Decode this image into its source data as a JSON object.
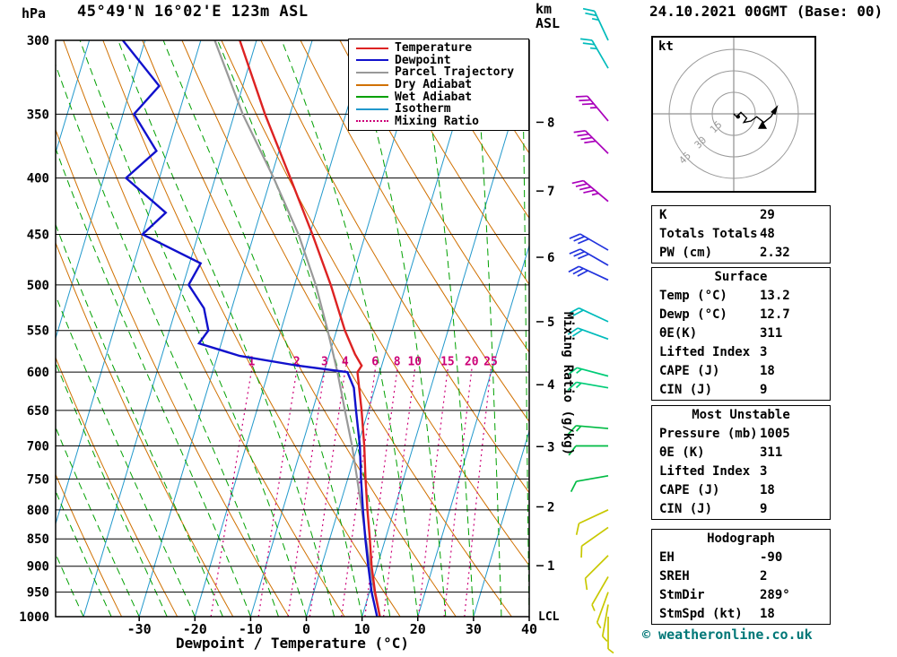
{
  "header": {
    "pressure_unit": "hPa",
    "station_title": "45°49'N 16°02'E 123m ASL",
    "altitude_unit_line1": "km",
    "altitude_unit_line2": "ASL",
    "datetime_title": "24.10.2021 00GMT (Base: 00)"
  },
  "axis": {
    "x_title": "Dewpoint / Temperature (°C)",
    "mixing_ratio_title": "Mixing Ratio (g/kg)",
    "lcl_label": "LCL"
  },
  "footer": {
    "credit": "© weatheronline.co.uk"
  },
  "legend": [
    {
      "label": "Temperature",
      "color": "#dd2222",
      "style": "solid"
    },
    {
      "label": "Dewpoint",
      "color": "#1111cc",
      "style": "solid"
    },
    {
      "label": "Parcel Trajectory",
      "color": "#999999",
      "style": "solid"
    },
    {
      "label": "Dry Adiabat",
      "color": "#d07000",
      "style": "solid"
    },
    {
      "label": "Wet Adiabat",
      "color": "#00a000",
      "style": "solid"
    },
    {
      "label": "Isotherm",
      "color": "#2299cc",
      "style": "solid"
    },
    {
      "label": "Mixing Ratio",
      "color": "#cc0077",
      "style": "dotted"
    }
  ],
  "panels": {
    "indices": {
      "rows": [
        {
          "label": "K",
          "value": "29"
        },
        {
          "label": "Totals Totals",
          "value": "48"
        },
        {
          "label": "PW (cm)",
          "value": "2.32"
        }
      ]
    },
    "surface": {
      "title": "Surface",
      "rows": [
        {
          "label": "Temp (°C)",
          "value": "13.2"
        },
        {
          "label": "Dewp (°C)",
          "value": "12.7"
        },
        {
          "label": "θE(K)",
          "value": "311"
        },
        {
          "label": "Lifted Index",
          "value": "3"
        },
        {
          "label": "CAPE (J)",
          "value": "18"
        },
        {
          "label": "CIN (J)",
          "value": "9"
        }
      ]
    },
    "most_unstable": {
      "title": "Most Unstable",
      "rows": [
        {
          "label": "Pressure (mb)",
          "value": "1005"
        },
        {
          "label": "θE (K)",
          "value": "311"
        },
        {
          "label": "Lifted Index",
          "value": "3"
        },
        {
          "label": "CAPE (J)",
          "value": "18"
        },
        {
          "label": "CIN (J)",
          "value": "9"
        }
      ]
    },
    "hodograph_stats": {
      "title": "Hodograph",
      "rows": [
        {
          "label": "EH",
          "value": "-90"
        },
        {
          "label": "SREH",
          "value": "2"
        },
        {
          "label": "StmDir",
          "value": "289°"
        },
        {
          "label": "StmSpd (kt)",
          "value": "18"
        }
      ]
    }
  },
  "hodograph": {
    "unit_label": "kt",
    "rings_kt": [
      15,
      30,
      45
    ],
    "trace_kt": [
      [
        0,
        0
      ],
      [
        2,
        2
      ],
      [
        5,
        -1
      ],
      [
        9,
        3
      ],
      [
        7,
        6
      ],
      [
        12,
        5
      ],
      [
        16,
        2
      ],
      [
        21,
        6
      ],
      [
        26,
        2
      ],
      [
        29,
        -3
      ]
    ],
    "marker_kt": [
      20,
      8
    ],
    "dot_kt": [
      3,
      2
    ]
  },
  "chart_data": {
    "type": "skewt-sounding",
    "title": "45°49'N 16°02'E 123m ASL",
    "valid": "24.10.2021 00GMT (Base: 00)",
    "xlabel": "Dewpoint / Temperature (°C)",
    "ylabel": "hPa",
    "pressure_range_hpa": [
      300,
      1000
    ],
    "temp_range_at_surface_c": [
      -45,
      40
    ],
    "skew": 0.3,
    "pressure_levels_hpa": [
      300,
      350,
      400,
      450,
      500,
      550,
      600,
      650,
      700,
      750,
      800,
      850,
      900,
      950,
      1000
    ],
    "temp_ticks_c": [
      -30,
      -20,
      -10,
      0,
      10,
      20,
      30,
      40
    ],
    "isotherm_step_c": 10,
    "dry_adiabat_step_k": 10,
    "wet_adiabat_surface_temps_c": [
      -40,
      -35,
      -30,
      -25,
      -20,
      -15,
      -10,
      -5,
      0,
      5,
      10,
      15,
      20,
      25,
      30,
      35,
      40
    ],
    "mixing_ratio_lines_gkg": [
      1,
      2,
      3,
      4,
      6,
      8,
      10,
      15,
      20,
      25
    ],
    "km_ticks": [
      {
        "km": 8,
        "p": 356
      },
      {
        "km": 7,
        "p": 411
      },
      {
        "km": 6,
        "p": 472
      },
      {
        "km": 5,
        "p": 540
      },
      {
        "km": 4,
        "p": 616
      },
      {
        "km": 3,
        "p": 701
      },
      {
        "km": 2,
        "p": 795
      },
      {
        "km": 1,
        "p": 899
      }
    ],
    "temperature_profile": [
      [
        1000,
        13.2
      ],
      [
        950,
        11.0
      ],
      [
        900,
        9.0
      ],
      [
        850,
        7.2
      ],
      [
        800,
        5.2
      ],
      [
        750,
        3.2
      ],
      [
        700,
        1.2
      ],
      [
        650,
        -1.2
      ],
      [
        600,
        -4.0
      ],
      [
        592,
        -3.6
      ],
      [
        578,
        -5.4
      ],
      [
        550,
        -8.5
      ],
      [
        500,
        -13.5
      ],
      [
        450,
        -19.5
      ],
      [
        400,
        -26.5
      ],
      [
        350,
        -34.5
      ],
      [
        300,
        -43.0
      ]
    ],
    "dewpoint_profile": [
      [
        1000,
        12.7
      ],
      [
        950,
        10.4
      ],
      [
        900,
        8.4
      ],
      [
        850,
        6.4
      ],
      [
        800,
        4.4
      ],
      [
        750,
        2.4
      ],
      [
        700,
        0.4
      ],
      [
        650,
        -2.2
      ],
      [
        620,
        -3.8
      ],
      [
        600,
        -5.8
      ],
      [
        592,
        -15.0
      ],
      [
        580,
        -26.0
      ],
      [
        565,
        -34.0
      ],
      [
        550,
        -33.0
      ],
      [
        525,
        -35.0
      ],
      [
        500,
        -39.0
      ],
      [
        478,
        -38.0
      ],
      [
        450,
        -50.0
      ],
      [
        430,
        -47.0
      ],
      [
        400,
        -56.0
      ],
      [
        378,
        -52.0
      ],
      [
        350,
        -58.0
      ],
      [
        330,
        -55.0
      ],
      [
        300,
        -64.0
      ]
    ],
    "parcel_profile": [
      [
        1000,
        13.2
      ],
      [
        950,
        10.9
      ],
      [
        900,
        8.7
      ],
      [
        850,
        6.5
      ],
      [
        800,
        4.2
      ],
      [
        750,
        1.7
      ],
      [
        700,
        -1.0
      ],
      [
        650,
        -4.2
      ],
      [
        600,
        -7.6
      ],
      [
        550,
        -11.6
      ],
      [
        500,
        -16.2
      ],
      [
        450,
        -22.0
      ],
      [
        400,
        -29.5
      ],
      [
        350,
        -38.5
      ],
      [
        300,
        -47.5
      ]
    ],
    "wind_barbs": [
      {
        "p": 300,
        "speed_kt": 25,
        "dir_deg": 335,
        "color": "#00bbbb"
      },
      {
        "p": 318,
        "speed_kt": 25,
        "dir_deg": 330,
        "color": "#00bbbb"
      },
      {
        "p": 355,
        "speed_kt": 35,
        "dir_deg": 320,
        "color": "#aa00bb"
      },
      {
        "p": 380,
        "speed_kt": 40,
        "dir_deg": 315,
        "color": "#aa00bb"
      },
      {
        "p": 420,
        "speed_kt": 45,
        "dir_deg": 310,
        "color": "#aa00bb"
      },
      {
        "p": 465,
        "speed_kt": 30,
        "dir_deg": 300,
        "color": "#2233dd"
      },
      {
        "p": 480,
        "speed_kt": 30,
        "dir_deg": 300,
        "color": "#2233dd"
      },
      {
        "p": 495,
        "speed_kt": 30,
        "dir_deg": 295,
        "color": "#2233dd"
      },
      {
        "p": 540,
        "speed_kt": 20,
        "dir_deg": 295,
        "color": "#00bbbb"
      },
      {
        "p": 560,
        "speed_kt": 20,
        "dir_deg": 290,
        "color": "#00bbbb"
      },
      {
        "p": 605,
        "speed_kt": 15,
        "dir_deg": 285,
        "color": "#00cc77"
      },
      {
        "p": 620,
        "speed_kt": 15,
        "dir_deg": 280,
        "color": "#00cc77"
      },
      {
        "p": 675,
        "speed_kt": 15,
        "dir_deg": 275,
        "color": "#00bb44"
      },
      {
        "p": 700,
        "speed_kt": 10,
        "dir_deg": 270,
        "color": "#00bb44"
      },
      {
        "p": 745,
        "speed_kt": 10,
        "dir_deg": 260,
        "color": "#00bb44"
      },
      {
        "p": 800,
        "speed_kt": 10,
        "dir_deg": 245,
        "color": "#c8c800"
      },
      {
        "p": 830,
        "speed_kt": 10,
        "dir_deg": 235,
        "color": "#c8c800"
      },
      {
        "p": 880,
        "speed_kt": 10,
        "dir_deg": 225,
        "color": "#c8c800"
      },
      {
        "p": 920,
        "speed_kt": 5,
        "dir_deg": 210,
        "color": "#c8c800"
      },
      {
        "p": 950,
        "speed_kt": 5,
        "dir_deg": 200,
        "color": "#c8c800"
      },
      {
        "p": 975,
        "speed_kt": 5,
        "dir_deg": 190,
        "color": "#c8c800"
      },
      {
        "p": 1000,
        "speed_kt": 5,
        "dir_deg": 180,
        "color": "#c8c800"
      }
    ],
    "colors": {
      "temperature": "#dd2222",
      "dewpoint": "#1111cc",
      "parcel": "#999999",
      "dry_adiabat": "#d07000",
      "wet_adiabat": "#00a000",
      "isotherm": "#2299cc",
      "mixing_ratio": "#cc0077",
      "isobar": "#000000"
    }
  }
}
